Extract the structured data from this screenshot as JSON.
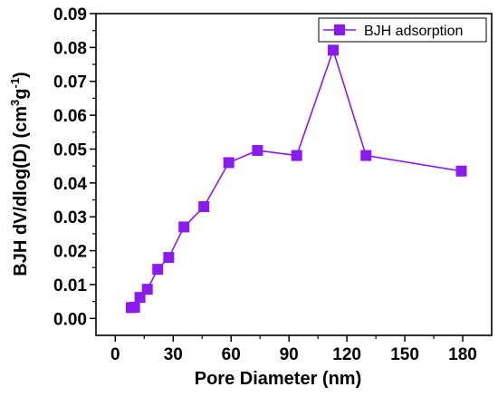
{
  "chart_data": {
    "type": "line",
    "xlabel": "Pore Diameter (nm)",
    "ylabel_main": "BJH dV/dlog(D) (cm",
    "ylabel_sup1": "3",
    "ylabel_mid": "g",
    "ylabel_sup2": "-1",
    "ylabel_end": ")",
    "xlim": [
      -10,
      195
    ],
    "ylim": [
      -0.005,
      0.09
    ],
    "xticks": [
      0,
      30,
      60,
      90,
      120,
      150,
      180
    ],
    "xtick_labels": [
      "0",
      "30",
      "60",
      "90",
      "120",
      "150",
      "180"
    ],
    "yticks": [
      0.0,
      0.01,
      0.02,
      0.03,
      0.04,
      0.05,
      0.06,
      0.07,
      0.08,
      0.09
    ],
    "ytick_labels": [
      "0.00",
      "0.01",
      "0.02",
      "0.03",
      "0.04",
      "0.05",
      "0.06",
      "0.07",
      "0.08",
      "0.09"
    ],
    "grid": false,
    "legend_position": "top-right",
    "series": [
      {
        "name": "BJH adsorption",
        "color": "#8a19f2",
        "marker": "square",
        "x": [
          8.3,
          10.0,
          12.8,
          16.6,
          22.0,
          27.7,
          35.6,
          45.9,
          58.8,
          73.7,
          94.0,
          112.9,
          129.9,
          179.3
        ],
        "y": [
          0.0032,
          0.0033,
          0.0062,
          0.0086,
          0.0145,
          0.018,
          0.027,
          0.033,
          0.046,
          0.0496,
          0.0481,
          0.0792,
          0.0481,
          0.0435
        ]
      }
    ]
  }
}
